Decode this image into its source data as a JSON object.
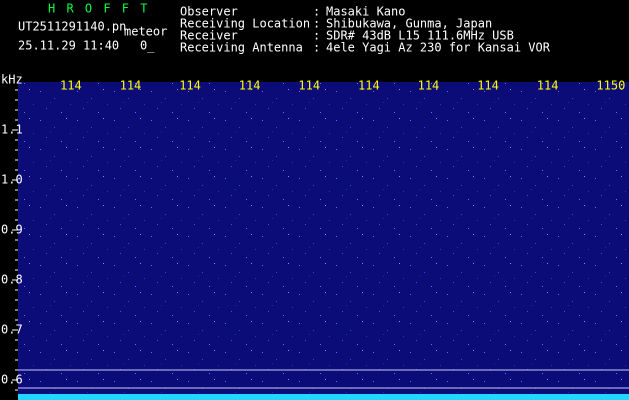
{
  "app": {
    "name": "H R O F F T",
    "file": "UT2511291140.pn",
    "mode": "meteor",
    "datetime": "25.11.29 11:40",
    "status": "0_"
  },
  "info": {
    "rows": [
      {
        "label": "Observer",
        "sep": ":",
        "value": "Masaki Kano"
      },
      {
        "label": "Receiving Location",
        "sep": ":",
        "value": "Shibukawa, Gunma, Japan"
      },
      {
        "label": "Receiver",
        "sep": ":",
        "value": "SDR# 43dB L15 111.6MHz USB"
      },
      {
        "label": "Receiving Antenna",
        "sep": ":",
        "value": "4ele Yagi Az 230 for Kansai VOR"
      }
    ]
  },
  "spectrogram": {
    "unit": "kHz",
    "time_labels": [
      "114",
      "114",
      "114",
      "114",
      "114",
      "114",
      "114",
      "114",
      "114",
      "1150"
    ],
    "freq_labels": [
      "1.1",
      "1.0",
      "0.9",
      "0.8",
      "0.7",
      "0.6"
    ]
  }
}
